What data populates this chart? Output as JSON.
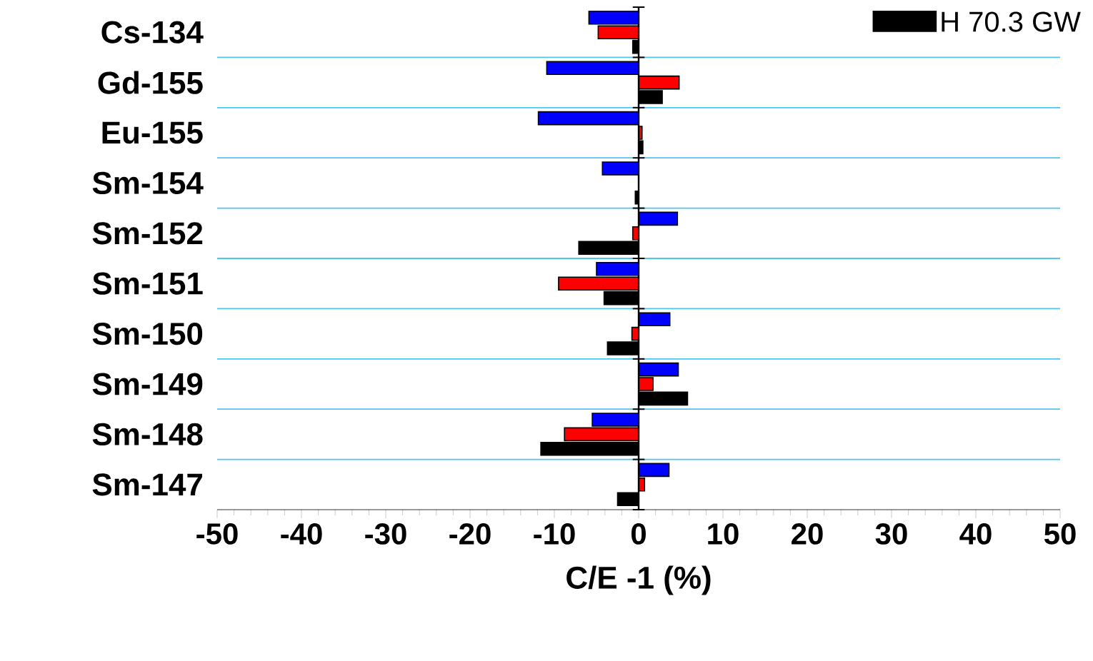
{
  "chart_data": {
    "type": "bar",
    "orientation": "horizontal",
    "xlabel": "C/E -1 (%)",
    "categories": [
      "Cs-134",
      "Gd-155",
      "Eu-155",
      "Sm-154",
      "Sm-152",
      "Sm-151",
      "Sm-150",
      "Sm-149",
      "Sm-148",
      "Sm-147"
    ],
    "series": [
      {
        "color": "#0000ff",
        "values": [
          -5.9,
          -10.9,
          -11.9,
          -4.3,
          4.6,
          -5.0,
          3.7,
          4.7,
          -5.5,
          3.6
        ]
      },
      {
        "color": "#ff0000",
        "values": [
          -4.8,
          4.8,
          0.4,
          null,
          -0.7,
          -9.5,
          -0.8,
          1.7,
          -8.8,
          0.7
        ]
      },
      {
        "name": "H  70.3 GW",
        "color": "#000000",
        "values": [
          -0.7,
          2.8,
          0.5,
          -0.4,
          -7.1,
          -4.1,
          -3.7,
          5.8,
          -11.6,
          -2.5
        ]
      }
    ],
    "xlim": [
      -50,
      50
    ],
    "xticks": [
      -50,
      -40,
      -30,
      -20,
      -10,
      0,
      10,
      20,
      30,
      40,
      50
    ],
    "grid": "y",
    "legend": "top right"
  }
}
